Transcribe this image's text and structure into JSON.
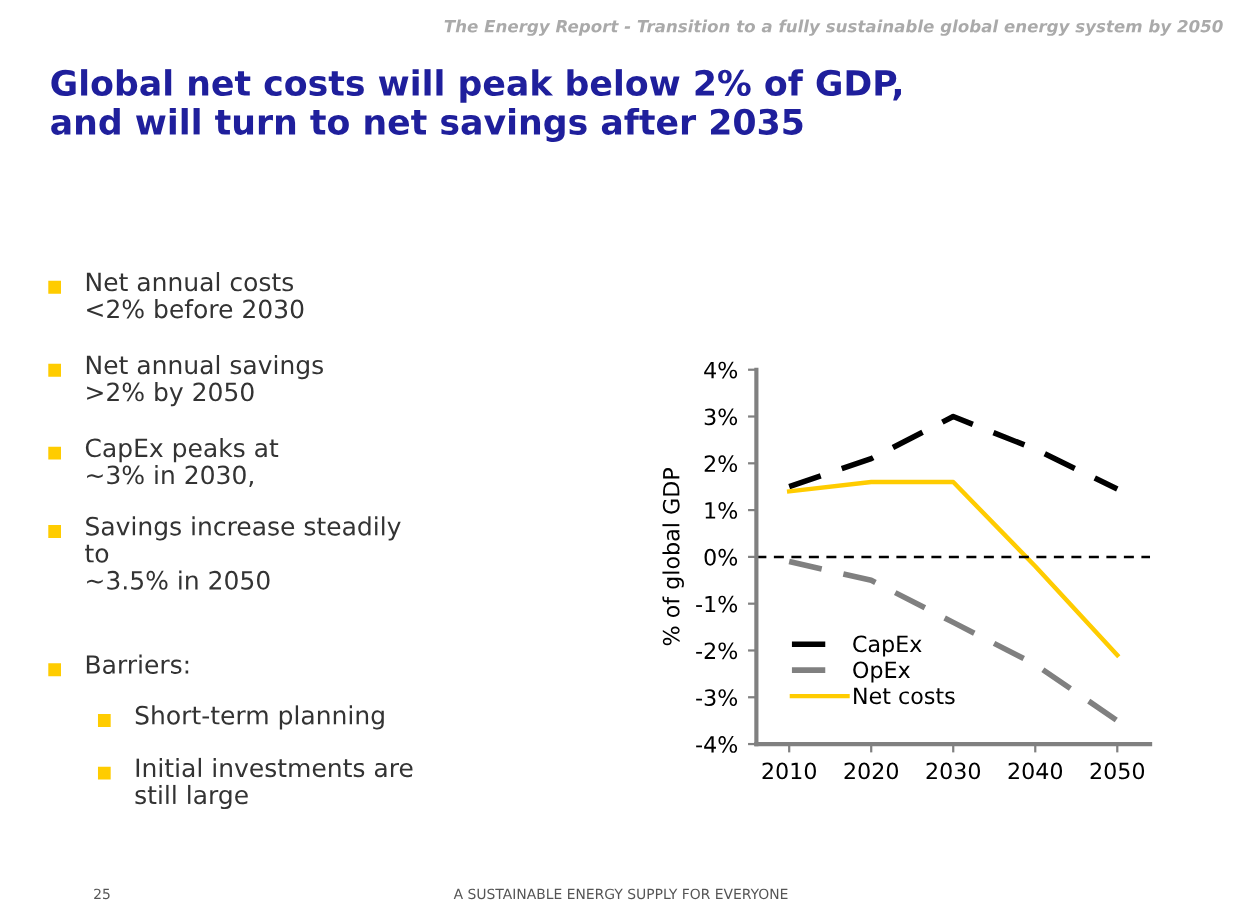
{
  "chart_data": {
    "type": "line",
    "title": "Global net costs will peak below 2% of GDP,\nand will turn to net savings after 2035",
    "ylabel": "% of global GDP",
    "categories": [
      "2010",
      "2020",
      "2030",
      "2040",
      "2050"
    ],
    "series": [
      {
        "name": "CapEx",
        "color": "#000000",
        "line_style": "dashed",
        "values": [
          1.5,
          2.1,
          3.0,
          2.3,
          1.45
        ]
      },
      {
        "name": "OpEx",
        "color": "#808080",
        "line_style": "dashed",
        "values": [
          -0.1,
          -0.5,
          -1.4,
          -2.3,
          -3.5
        ]
      },
      {
        "name": "Net costs",
        "color": "#ffcc00",
        "line_style": "solid",
        "values": [
          1.4,
          1.6,
          1.6,
          -0.2,
          -2.1
        ]
      }
    ],
    "ylim": [
      -4,
      4
    ],
    "yticks": [
      {
        "value": -4,
        "label": "-4%"
      },
      {
        "value": -3,
        "label": "-3%"
      },
      {
        "value": -2,
        "label": "-2%"
      },
      {
        "value": -1,
        "label": "-1%"
      },
      {
        "value": 0,
        "label": "0%"
      },
      {
        "value": 1,
        "label": "1%"
      },
      {
        "value": 2,
        "label": "2%"
      },
      {
        "value": 3,
        "label": "3%"
      },
      {
        "value": 4,
        "label": "4%"
      }
    ],
    "ref_lines": [
      {
        "axis": "y",
        "value": 0,
        "color": "#000000",
        "line_style": "dashed"
      }
    ],
    "grid": false,
    "legend": "bottom left",
    "marker": "none",
    "annotations": [
      "The Energy Report - Transition to a fully sustainable global energy system by 2050",
      "Net annual costs\n<2% before 2030",
      "Net annual savings\n>2% by 2050",
      "CapEx peaks at\n~3% in 2030,",
      "Savings increase steadily\nto\n~3.5% in 2050",
      "Barriers:",
      "Short-term planning",
      "Initial investments are\nstill large",
      "25",
      "A SUSTAINABLE ENERGY SUPPLY FOR EVERYONE"
    ]
  }
}
